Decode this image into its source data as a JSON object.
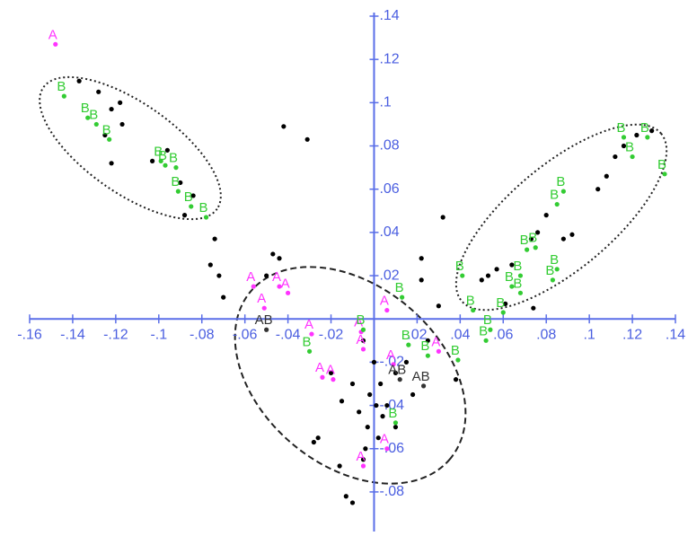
{
  "chart_data": {
    "type": "scatter",
    "xlim": [
      -0.16,
      0.14
    ],
    "ylim": [
      -0.09,
      0.14
    ],
    "xticks": [
      {
        "value": -0.16,
        "label": "-.16"
      },
      {
        "value": -0.14,
        "label": "-.14"
      },
      {
        "value": -0.12,
        "label": "-.12"
      },
      {
        "value": -0.1,
        "label": "-.1"
      },
      {
        "value": -0.08,
        "label": "-.08"
      },
      {
        "value": -0.06,
        "label": "-.06"
      },
      {
        "value": -0.04,
        "label": "-.04"
      },
      {
        "value": -0.02,
        "label": "-.02"
      },
      {
        "value": 0.02,
        "label": ".02"
      },
      {
        "value": 0.04,
        "label": ".04"
      },
      {
        "value": 0.06,
        "label": ".06"
      },
      {
        "value": 0.08,
        "label": ".08"
      },
      {
        "value": 0.1,
        "label": ".1"
      },
      {
        "value": 0.12,
        "label": ".12"
      },
      {
        "value": 0.14,
        "label": ".14"
      }
    ],
    "yticks": [
      {
        "value": -0.08,
        "label": "-.08"
      },
      {
        "value": -0.06,
        "label": "-.06"
      },
      {
        "value": -0.04,
        "label": "-.04"
      },
      {
        "value": -0.02,
        "label": "-.02"
      },
      {
        "value": 0.02,
        "label": ".02"
      },
      {
        "value": 0.04,
        "label": ".04"
      },
      {
        "value": 0.06,
        "label": ".06"
      },
      {
        "value": 0.08,
        "label": ".08"
      },
      {
        "value": 0.1,
        "label": ".1"
      },
      {
        "value": 0.12,
        "label": ".12"
      },
      {
        "value": 0.14,
        "label": ".14"
      }
    ],
    "axis_color": "#5a6ee8",
    "series": [
      {
        "color": "#000000",
        "x": [
          -0.137,
          -0.128,
          -0.122,
          -0.118,
          -0.117,
          -0.125,
          -0.122,
          -0.103,
          -0.096,
          -0.09,
          -0.084,
          -0.088,
          -0.074,
          -0.076,
          -0.072,
          -0.07,
          -0.042,
          -0.031,
          -0.047,
          -0.044,
          -0.05,
          0.129,
          0.122,
          0.116,
          0.112,
          0.108,
          0.104,
          0.08,
          0.076,
          0.073,
          0.088,
          0.092,
          0.064,
          0.057,
          0.053,
          0.05,
          0.061,
          0.074,
          0.032,
          0.022,
          0.022,
          0.03,
          -0.005,
          0.0,
          0.003,
          -0.002,
          0.001,
          0.004,
          -0.003,
          0.002,
          0.006,
          0.01,
          -0.01,
          -0.015,
          -0.007,
          -0.026,
          -0.028,
          -0.016,
          -0.01,
          -0.013,
          -0.004,
          0.015,
          0.018,
          -0.02,
          0.025,
          0.038,
          0.01,
          -0.005
        ],
        "y": [
          0.11,
          0.105,
          0.097,
          0.1,
          0.09,
          0.085,
          0.072,
          0.073,
          0.078,
          0.063,
          0.057,
          0.048,
          0.037,
          0.025,
          0.02,
          0.01,
          0.089,
          0.083,
          0.03,
          0.028,
          0.02,
          0.087,
          0.085,
          0.08,
          0.075,
          0.066,
          0.06,
          0.048,
          0.04,
          0.037,
          0.037,
          0.039,
          0.025,
          0.023,
          0.02,
          0.018,
          0.007,
          0.005,
          0.047,
          0.028,
          0.018,
          0.006,
          -0.01,
          -0.02,
          -0.03,
          -0.035,
          -0.04,
          -0.045,
          -0.05,
          -0.055,
          -0.04,
          -0.025,
          -0.03,
          -0.038,
          -0.043,
          -0.055,
          -0.057,
          -0.068,
          -0.085,
          -0.082,
          -0.06,
          -0.02,
          -0.035,
          -0.025,
          -0.01,
          -0.028,
          -0.05,
          -0.065
        ]
      },
      {
        "name": "A",
        "color": "#ff33ff",
        "x": [
          -0.148,
          -0.056,
          -0.044,
          -0.04,
          -0.051,
          -0.029,
          0.006,
          -0.024,
          -0.019,
          -0.006,
          -0.005,
          0.03,
          0.006,
          -0.005,
          0.009
        ],
        "y": [
          0.127,
          0.015,
          0.015,
          0.012,
          0.005,
          -0.007,
          0.004,
          -0.027,
          -0.028,
          -0.006,
          -0.014,
          -0.015,
          -0.06,
          -0.068,
          -0.021
        ]
      },
      {
        "name": "B",
        "color": "#33cc33",
        "x": [
          -0.144,
          -0.133,
          -0.129,
          -0.123,
          -0.099,
          -0.097,
          -0.092,
          -0.091,
          -0.085,
          -0.078,
          0.116,
          0.127,
          0.12,
          0.135,
          0.088,
          0.085,
          0.075,
          0.071,
          0.085,
          0.083,
          0.068,
          0.064,
          0.068,
          0.041,
          0.046,
          0.06,
          0.054,
          0.052,
          0.039,
          0.013,
          0.016,
          0.025,
          -0.03,
          -0.005,
          0.01
        ],
        "y": [
          0.103,
          0.093,
          0.09,
          0.083,
          0.073,
          0.071,
          0.07,
          0.059,
          0.052,
          0.047,
          0.084,
          0.084,
          0.075,
          0.067,
          0.059,
          0.053,
          0.033,
          0.032,
          0.023,
          0.018,
          0.02,
          0.015,
          0.012,
          0.02,
          0.004,
          0.003,
          -0.005,
          -0.01,
          -0.019,
          0.01,
          -0.012,
          -0.017,
          -0.015,
          -0.005,
          -0.048
        ]
      },
      {
        "name": "AB",
        "color": "#333333",
        "x": [
          -0.05,
          0.012,
          0.023
        ],
        "y": [
          -0.005,
          -0.028,
          -0.031
        ]
      }
    ]
  }
}
